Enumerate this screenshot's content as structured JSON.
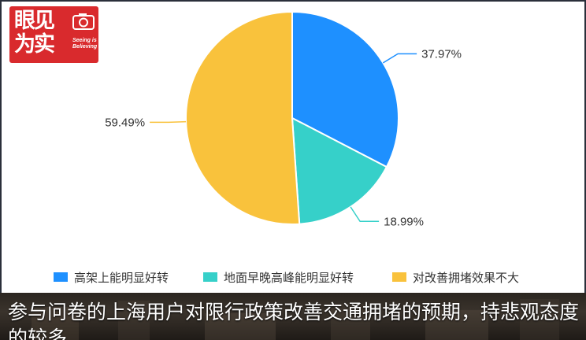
{
  "logo": {
    "main_text": "眼见为实",
    "sub_text": "Seeing is Believing",
    "color": "#d92a2d"
  },
  "chart_data": {
    "type": "pie",
    "slices": [
      {
        "name": "高架上能明显好转",
        "value": 37.97,
        "label": "37.97%",
        "color": "#1e90ff"
      },
      {
        "name": "地面早晚高峰能明显好转",
        "value": 18.99,
        "label": "18.99%",
        "color": "#36d0c9"
      },
      {
        "name": "对改善拥堵效果不大",
        "value": 59.49,
        "label": "59.49%",
        "color": "#f9c23c"
      }
    ],
    "legend_position": "bottom"
  },
  "caption": {
    "text": "参与问卷的上海用户对限行政策改善交通拥堵的预期，持悲观态度的较多"
  }
}
